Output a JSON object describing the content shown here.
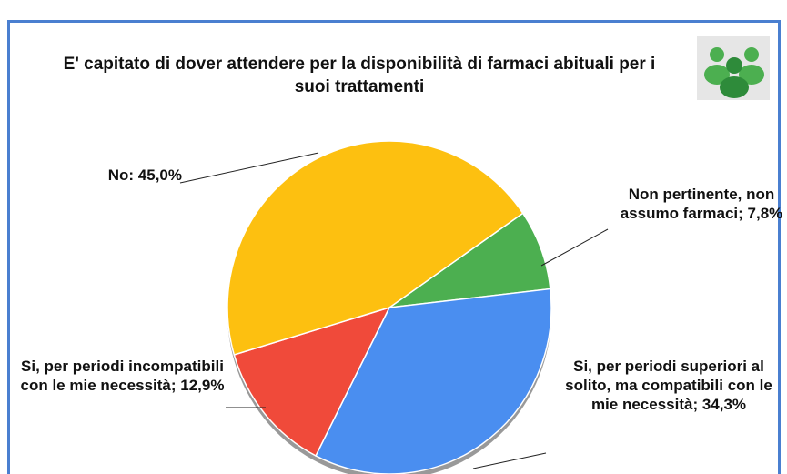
{
  "chart_data": {
    "type": "pie",
    "title": "E' capitato di dover attendere per la disponibilità di farmaci abituali per i suoi trattamenti",
    "values": [
      7.8,
      34.3,
      12.9,
      45.0
    ],
    "value_labels": [
      "Non pertinente, non assumo farmaci; 7,8%",
      "Si, per periodi superiori al solito, ma compatibili con le mie necessità; 34,3%",
      "Si, per periodi incompatibili con le mie necessità; 12,9%",
      "No: 45,0%"
    ],
    "colors": [
      "#4caf50",
      "#4a8ef0",
      "#f04a3a",
      "#fdc010"
    ]
  }
}
